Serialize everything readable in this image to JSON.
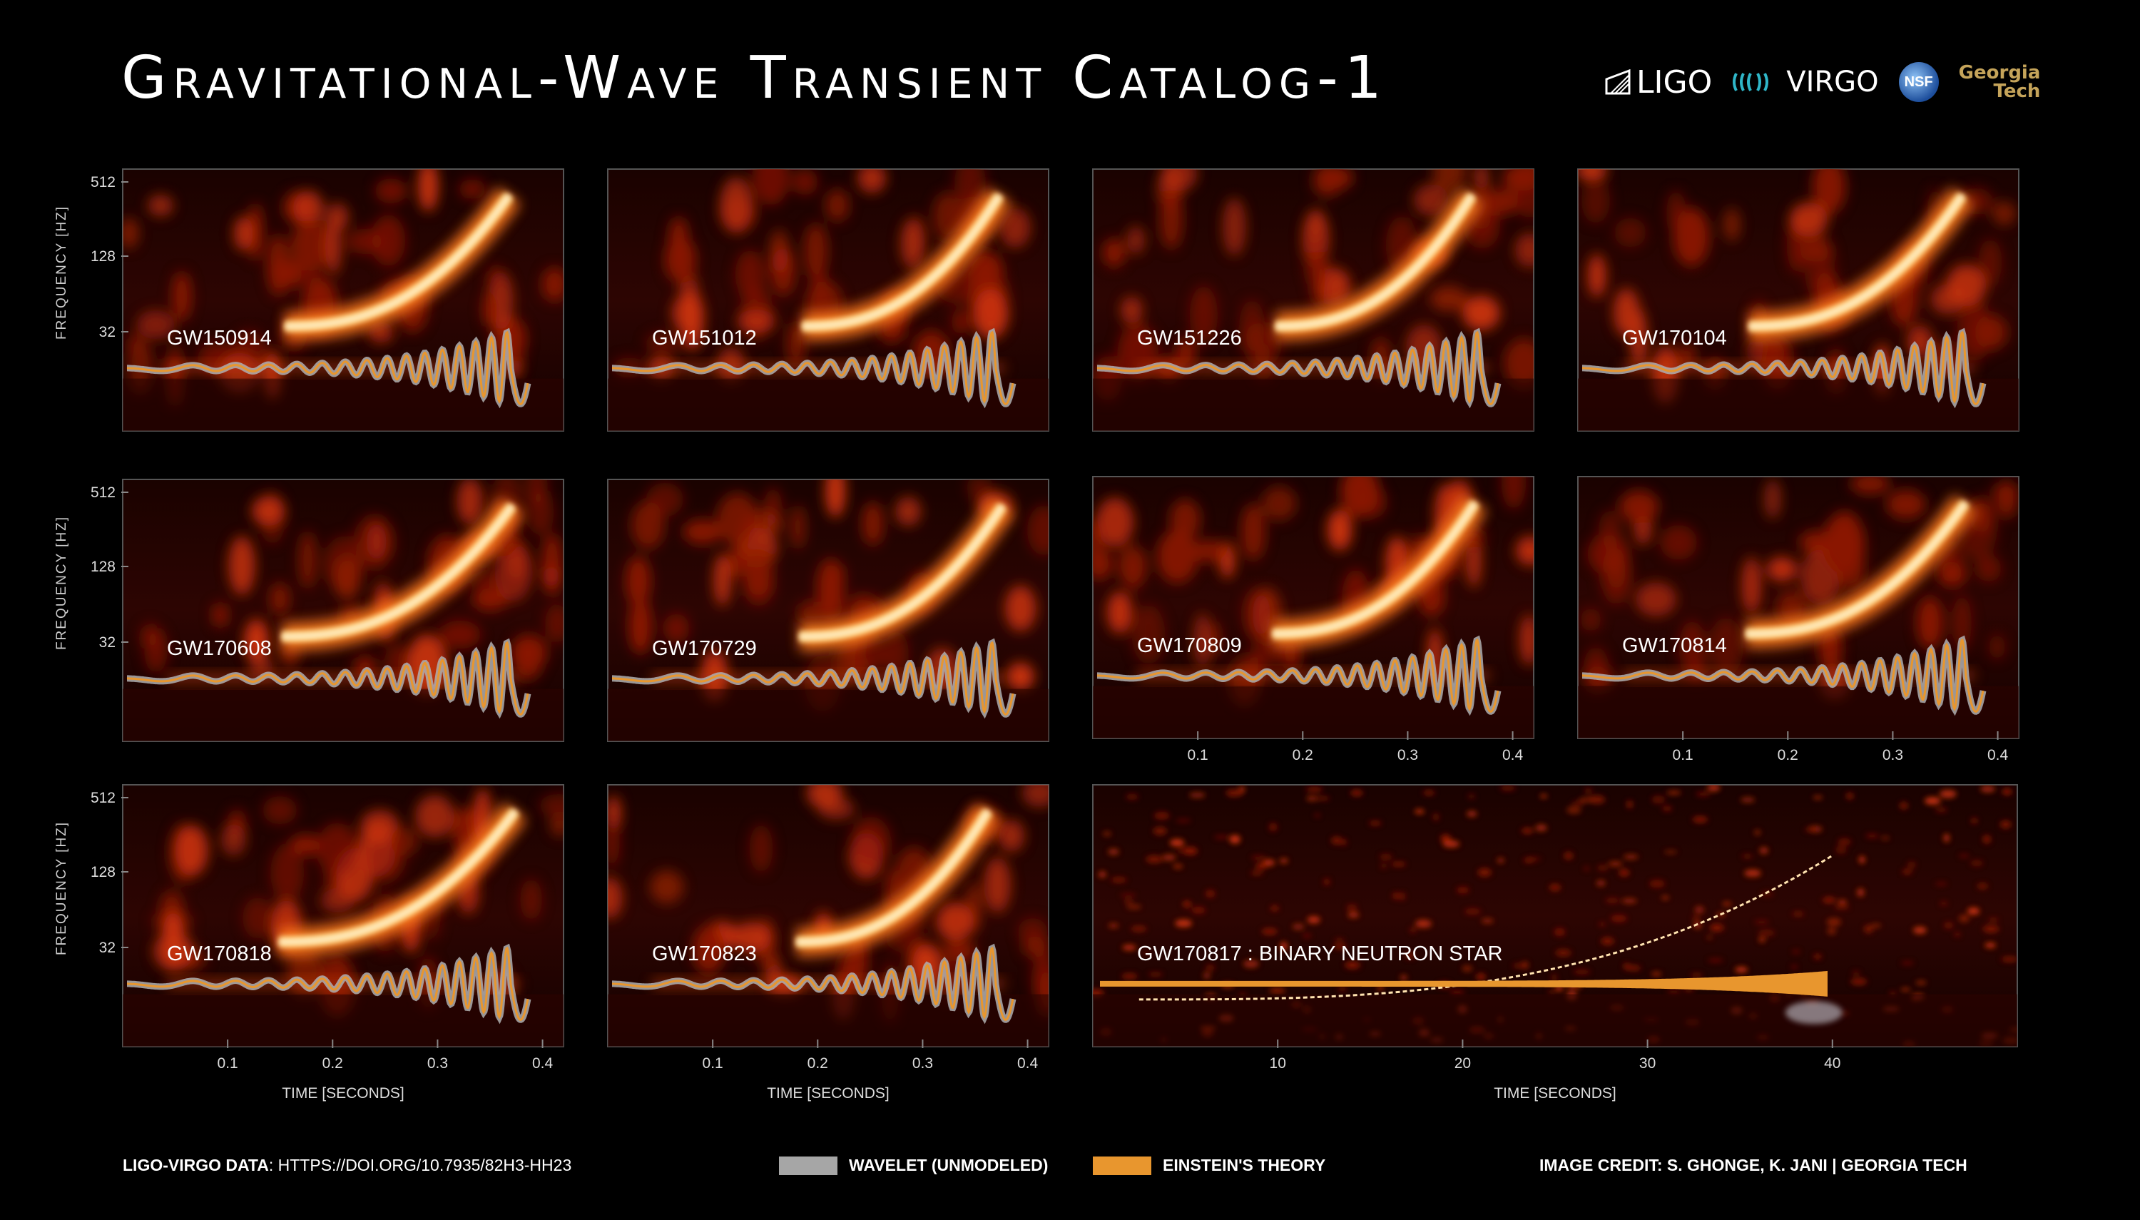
{
  "title": "Gravitational-Wave Transient Catalog-1",
  "logos": {
    "ligo": "LIGO",
    "virgo": "VIRGO",
    "nsf": "NSF",
    "georgia_tech_line1": "Georgia",
    "georgia_tech_line2": "Tech"
  },
  "axis_labels": {
    "frequency": "FREQUENCY  [HZ]",
    "time": "TIME  [SECONDS]"
  },
  "legend": {
    "wavelet": "WAVELET (UNMODELED)",
    "einstein": "EINSTEIN'S THEORY"
  },
  "footer": {
    "data_label": "LIGO-VIRGO DATA",
    "data_url": ": HTTPS://DOI.ORG/10.7935/82H3-HH23",
    "credit": "IMAGE CREDIT:  S. GHONGE, K. JANI | GEORGIA TECH"
  },
  "colors": {
    "background": "#000000",
    "wavelet": "#b0b0b0",
    "einstein": "#e8962e",
    "spectrogram_low": "#5a0a05",
    "spectrogram_high": "#fff7d6"
  },
  "chart_data": [
    {
      "type": "heatmap",
      "event": "GW150914",
      "ylabel": "FREQUENCY  [HZ]",
      "yticks": [
        "512",
        "128",
        "32"
      ],
      "xlabel": "",
      "xticks": [],
      "xlim": [
        0,
        0.42
      ]
    },
    {
      "type": "heatmap",
      "event": "GW151012",
      "ylabel": "",
      "yticks": [],
      "xlabel": "",
      "xticks": [],
      "xlim": [
        0,
        0.42
      ]
    },
    {
      "type": "heatmap",
      "event": "GW151226",
      "ylabel": "",
      "yticks": [],
      "xlabel": "",
      "xticks": [],
      "xlim": [
        0,
        0.42
      ]
    },
    {
      "type": "heatmap",
      "event": "GW170104",
      "ylabel": "",
      "yticks": [],
      "xlabel": "",
      "xticks": [],
      "xlim": [
        0,
        0.42
      ]
    },
    {
      "type": "heatmap",
      "event": "GW170608",
      "ylabel": "FREQUENCY  [HZ]",
      "yticks": [
        "512",
        "128",
        "32"
      ],
      "xlabel": "",
      "xticks": [],
      "xlim": [
        0,
        0.42
      ]
    },
    {
      "type": "heatmap",
      "event": "GW170729",
      "ylabel": "",
      "yticks": [],
      "xlabel": "",
      "xticks": [],
      "xlim": [
        0,
        0.42
      ]
    },
    {
      "type": "heatmap",
      "event": "GW170809",
      "ylabel": "",
      "yticks": [],
      "xlabel": "",
      "xticks": [
        "0.1",
        "0.2",
        "0.3",
        "0.4"
      ],
      "xlim": [
        0,
        0.42
      ]
    },
    {
      "type": "heatmap",
      "event": "GW170814",
      "ylabel": "",
      "yticks": [],
      "xlabel": "",
      "xticks": [
        "0.1",
        "0.2",
        "0.3",
        "0.4"
      ],
      "xlim": [
        0,
        0.42
      ]
    },
    {
      "type": "heatmap",
      "event": "GW170818",
      "ylabel": "FREQUENCY  [HZ]",
      "yticks": [
        "512",
        "128",
        "32"
      ],
      "xlabel": "TIME  [SECONDS]",
      "xticks": [
        "0.1",
        "0.2",
        "0.3",
        "0.4"
      ],
      "xlim": [
        0,
        0.42
      ]
    },
    {
      "type": "heatmap",
      "event": "GW170823",
      "ylabel": "",
      "yticks": [],
      "xlabel": "TIME  [SECONDS]",
      "xticks": [
        "0.1",
        "0.2",
        "0.3",
        "0.4"
      ],
      "xlim": [
        0,
        0.42
      ]
    },
    {
      "type": "heatmap",
      "event": "GW170817 : BINARY NEUTRON STAR",
      "ylabel": "",
      "yticks": [],
      "xlabel": "TIME  [SECONDS]",
      "xticks": [
        "10",
        "20",
        "30",
        "40"
      ],
      "xlim": [
        0,
        50
      ]
    }
  ]
}
